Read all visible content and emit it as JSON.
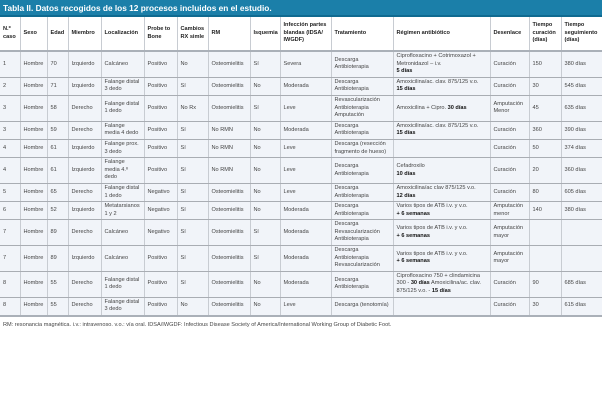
{
  "title": "Tabla II. Datos recogidos de los 12 procesos incluidos en el estudio.",
  "headers": [
    "N.º caso",
    "Sexo",
    "Edad",
    "Miembro",
    "Localización",
    "Probe to Bone",
    "Cambios RX simle",
    "RM",
    "Isquemia",
    "Infección partes blandas (IDSA/ IWGDF)",
    "Tratamiento",
    "Régimen antibiótico",
    "Desenlace",
    "Tiempo curación (días)",
    "Tiempo seguimiento (días)"
  ],
  "rows": [
    {
      "caso": "1",
      "sexo": "Hombre",
      "edad": "70",
      "miembro": "Izquierdo",
      "loc": "Calcáneo",
      "ptb": "Positivo",
      "rx": "No",
      "rm": "Osteomielitis",
      "isq": "Sí",
      "inf": "Severa",
      "trat": [
        "Descarga",
        "Antibioterapia"
      ],
      "reg": [
        {
          "t": "Ciprofloxacino + Cotrimoxazol + Metronidazol – i.v."
        },
        {
          "br": true
        },
        {
          "t": "5 días",
          "b": true
        }
      ],
      "des": "Curación",
      "cur": "150",
      "seg": "380 días"
    },
    {
      "caso": "2",
      "sexo": "Hombre",
      "edad": "71",
      "miembro": "Izquierdo",
      "loc": "Falange distal 3 dedo",
      "ptb": "Positivo",
      "rx": "Sí",
      "rm": "Osteomielitis",
      "isq": "No",
      "inf": "Moderada",
      "trat": [
        "Descarga",
        "Antibioterapia"
      ],
      "reg": [
        {
          "t": "Amoxicilina/ac. clav. 875/125 v.o."
        },
        {
          "br": true
        },
        {
          "t": "15 días",
          "b": true
        }
      ],
      "des": "Curación",
      "cur": "30",
      "seg": "545 días"
    },
    {
      "caso": "3",
      "sexo": "Hombre",
      "edad": "58",
      "miembro": "Derecho",
      "loc": "Falange distal 1 dedo",
      "ptb": "Positivo",
      "rx": "No Rx",
      "rm": "Osteomielitis",
      "isq": "Sí",
      "inf": "Leve",
      "trat": [
        "Revascularización",
        "Antibioterapia",
        "Amputación"
      ],
      "reg": [
        {
          "t": "Amoxicilina + Cipro. "
        },
        {
          "t": "30 días",
          "b": true
        }
      ],
      "des": "Amputación Menor",
      "cur": "45",
      "seg": "635 días"
    },
    {
      "caso": "3",
      "sexo": "Hombre",
      "edad": "59",
      "miembro": "Derecho",
      "loc": "Falange media 4 dedo",
      "ptb": "Positivo",
      "rx": "Sí",
      "rm": "No RMN",
      "isq": "No",
      "inf": "Moderada",
      "trat": [
        "Descarga",
        "Antibioterapia"
      ],
      "reg": [
        {
          "t": "Amoxicilina/ac. clav. 875/125 v.o."
        },
        {
          "br": true
        },
        {
          "t": "15 días",
          "b": true
        }
      ],
      "des": "Curación",
      "cur": "360",
      "seg": "390 días"
    },
    {
      "caso": "4",
      "sexo": "Hombre",
      "edad": "61",
      "miembro": "Izquierdo",
      "loc": "Falange prox. 3 dedo",
      "ptb": "Positivo",
      "rx": "Sí",
      "rm": "No RMN",
      "isq": "No",
      "inf": "Leve",
      "trat": [
        "Descarga (resección fragmento de hueso)"
      ],
      "reg": [],
      "des": "Curación",
      "cur": "50",
      "seg": "374 días"
    },
    {
      "caso": "4",
      "sexo": "Hombre",
      "edad": "61",
      "miembro": "Izquierdo",
      "loc": "Falange media 4.º dedo",
      "ptb": "Positivo",
      "rx": "Sí",
      "rm": "No RMN",
      "isq": "No",
      "inf": "Leve",
      "trat": [
        "Descarga",
        "Antibioterapia"
      ],
      "reg": [
        {
          "t": "Cefadroxilo"
        },
        {
          "br": true
        },
        {
          "t": "10 días",
          "b": true
        }
      ],
      "des": "Curación",
      "cur": "20",
      "seg": "360 días"
    },
    {
      "caso": "5",
      "sexo": "Hombre",
      "edad": "65",
      "miembro": "Derecho",
      "loc": "Falange distal 1 dedo",
      "ptb": "Negativo",
      "rx": "Sí",
      "rm": "Osteomielitis",
      "isq": "No",
      "inf": "Leve",
      "trat": [
        "Descarga",
        "Antibioterapia"
      ],
      "reg": [
        {
          "t": "Amoxicilina/ac clav 875/125 v.o."
        },
        {
          "br": true
        },
        {
          "t": "12 días",
          "b": true
        }
      ],
      "des": "Curación",
      "cur": "80",
      "seg": "605 días"
    },
    {
      "caso": "6",
      "sexo": "Hombre",
      "edad": "52",
      "miembro": "Izquierdo",
      "loc": "Metatarsianos 1 y 2",
      "ptb": "Negativo",
      "rx": "Sí",
      "rm": "Osteomielitis",
      "isq": "No",
      "inf": "Moderada",
      "trat": [
        "Descarga",
        "Antibioterapia"
      ],
      "reg": [
        {
          "t": "Varios tipos de ATB i.v. y v.o."
        },
        {
          "br": true
        },
        {
          "t": "+ 6 semanas",
          "b": true
        }
      ],
      "des": "Amputación menor",
      "cur": "140",
      "seg": "380 días"
    },
    {
      "caso": "7",
      "sexo": "Hombre",
      "edad": "89",
      "miembro": "Derecho",
      "loc": "Calcáneo",
      "ptb": "Negativo",
      "rx": "Sí",
      "rm": "Osteomielitis",
      "isq": "Sí",
      "inf": "Moderada",
      "trat": [
        "Descarga",
        "Revascularización",
        "Antibioterapia"
      ],
      "reg": [
        {
          "t": "Varios tipos de ATB i.v. y v.o."
        },
        {
          "br": true
        },
        {
          "t": "+ 6 semanas",
          "b": true
        }
      ],
      "des": "Amputación mayor",
      "cur": "",
      "seg": ""
    },
    {
      "caso": "7",
      "sexo": "Hombre",
      "edad": "89",
      "miembro": "Izquierdo",
      "loc": "Calcáneo",
      "ptb": "Positivo",
      "rx": "Sí",
      "rm": "Osteomielitis",
      "isq": "Sí",
      "inf": "Moderada",
      "trat": [
        "Descarga",
        "Antibioterapia",
        "Revascularización"
      ],
      "reg": [
        {
          "t": "Varios tipos de ATB i.v. y v.o."
        },
        {
          "br": true
        },
        {
          "t": "+ 6 semanas",
          "b": true
        }
      ],
      "des": "Amputación mayor",
      "cur": "",
      "seg": ""
    },
    {
      "caso": "8",
      "sexo": "Hombre",
      "edad": "55",
      "miembro": "Derecho",
      "loc": "Falange distal 1 dedo",
      "ptb": "Positivo",
      "rx": "Sí",
      "rm": "Osteomielitis",
      "isq": "No",
      "inf": "Moderada",
      "trat": [
        "Descarga",
        "Antibioterapia"
      ],
      "reg": [
        {
          "t": "Ciprofloxacino 750 + clindamicina 300 - "
        },
        {
          "t": "30 días",
          "b": true
        },
        {
          "t": " Amoxicilina/ac. clav. 875/125 v.o. - "
        },
        {
          "t": "15 días",
          "b": true
        }
      ],
      "des": "Curación",
      "cur": "90",
      "seg": "685 días"
    },
    {
      "caso": "8",
      "sexo": "Hombre",
      "edad": "55",
      "miembro": "Derecho",
      "loc": "Falange distal 3 dedo",
      "ptb": "Positivo",
      "rx": "No",
      "rm": "Osteomielitis",
      "isq": "No",
      "inf": "Leve",
      "trat": [
        "Descarga (tenotomía)"
      ],
      "reg": [],
      "des": "Curación",
      "cur": "30",
      "seg": "615 días"
    }
  ],
  "footnote": "RM: resonancia magnética. i.v.: intravenoso. v.o.: vía oral. IDSA/IWGDF: Infectious Disease Society of America/International Working Group of Diabetic Foot."
}
